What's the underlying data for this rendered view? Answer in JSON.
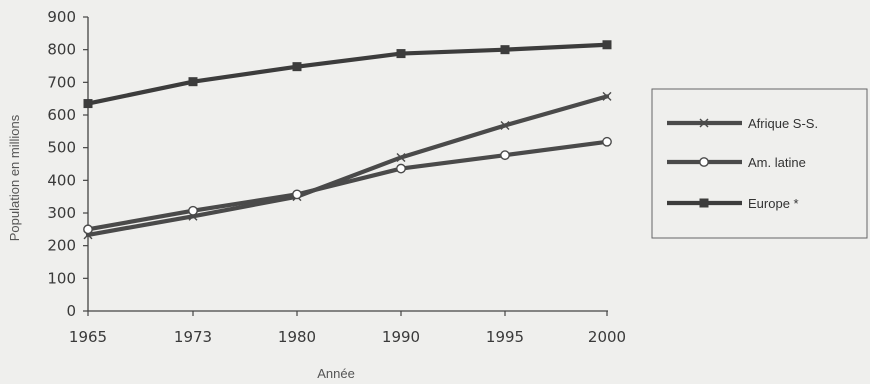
{
  "chart_data": {
    "type": "line",
    "title": "",
    "xlabel": "Année",
    "ylabel": "Population en millions",
    "x": [
      "1965",
      "1973",
      "1980",
      "1990",
      "1995",
      "2000"
    ],
    "ylim": [
      0,
      900
    ],
    "yticks": [
      "0",
      "100",
      "200",
      "300",
      "400",
      "500",
      "600",
      "700",
      "800",
      "900"
    ],
    "grid": false,
    "legend_position": "right",
    "series": [
      {
        "name": "Afrique S-S.",
        "marker": "x",
        "color": "#4a4a4a",
        "values": [
          233,
          290,
          350,
          470,
          568,
          657
        ]
      },
      {
        "name": "Am. latine",
        "marker": "circle",
        "color": "#4a4a4a",
        "values": [
          250,
          307,
          357,
          436,
          477,
          518
        ]
      },
      {
        "name": "Europe *",
        "marker": "square",
        "color": "#3c3c3c",
        "values": [
          635,
          702,
          748,
          788,
          800,
          815
        ]
      }
    ]
  }
}
